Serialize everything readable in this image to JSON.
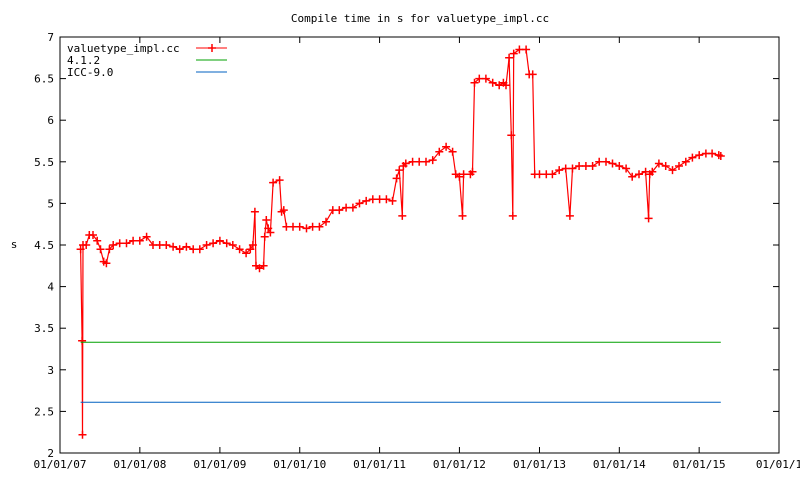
{
  "chart_data": {
    "type": "line",
    "title": "Compile time in s for valuetype_impl.cc",
    "xlabel": "",
    "ylabel": "s",
    "x_type": "date",
    "xlim": [
      "2007-01-01",
      "2016-01-01"
    ],
    "ylim": [
      2,
      7
    ],
    "x_ticks": [
      "01/01/07",
      "01/01/08",
      "01/01/09",
      "01/01/10",
      "01/01/11",
      "01/01/12",
      "01/01/13",
      "01/01/14",
      "01/01/15",
      "01/01/1"
    ],
    "y_ticks": [
      "2",
      "2.5",
      "3",
      "3.5",
      "4",
      "4.5",
      "5",
      "5.5",
      "6",
      "6.5",
      "7"
    ],
    "legend_position": "top-left",
    "series": [
      {
        "name": "valuetype_impl.cc",
        "color": "#ff0000",
        "style": "line+points",
        "marker": "cross",
        "points": [
          [
            "2007-04-05",
            4.45
          ],
          [
            "2007-04-12",
            3.35
          ],
          [
            "2007-04-14",
            2.22
          ],
          [
            "2007-04-16",
            4.5
          ],
          [
            "2007-05-01",
            4.5
          ],
          [
            "2007-05-15",
            4.62
          ],
          [
            "2007-06-01",
            4.62
          ],
          [
            "2007-06-20",
            4.55
          ],
          [
            "2007-07-05",
            4.45
          ],
          [
            "2007-07-20",
            4.3
          ],
          [
            "2007-08-01",
            4.28
          ],
          [
            "2007-08-15",
            4.45
          ],
          [
            "2007-09-01",
            4.5
          ],
          [
            "2007-10-01",
            4.52
          ],
          [
            "2007-11-01",
            4.52
          ],
          [
            "2007-12-01",
            4.55
          ],
          [
            "2008-01-01",
            4.55
          ],
          [
            "2008-02-01",
            4.6
          ],
          [
            "2008-03-01",
            4.5
          ],
          [
            "2008-04-01",
            4.5
          ],
          [
            "2008-05-01",
            4.5
          ],
          [
            "2008-06-01",
            4.48
          ],
          [
            "2008-07-01",
            4.45
          ],
          [
            "2008-08-01",
            4.48
          ],
          [
            "2008-09-01",
            4.45
          ],
          [
            "2008-10-01",
            4.45
          ],
          [
            "2008-11-01",
            4.5
          ],
          [
            "2008-12-01",
            4.52
          ],
          [
            "2009-01-01",
            4.55
          ],
          [
            "2009-02-01",
            4.52
          ],
          [
            "2009-03-01",
            4.5
          ],
          [
            "2009-04-01",
            4.45
          ],
          [
            "2009-05-01",
            4.4
          ],
          [
            "2009-05-20",
            4.45
          ],
          [
            "2009-06-01",
            4.5
          ],
          [
            "2009-06-10",
            4.9
          ],
          [
            "2009-06-15",
            4.25
          ],
          [
            "2009-07-01",
            4.22
          ],
          [
            "2009-07-20",
            4.25
          ],
          [
            "2009-07-25",
            4.6
          ],
          [
            "2009-08-01",
            4.8
          ],
          [
            "2009-08-10",
            4.7
          ],
          [
            "2009-08-20",
            4.65
          ],
          [
            "2009-09-01",
            5.25
          ],
          [
            "2009-10-01",
            5.28
          ],
          [
            "2009-10-10",
            4.9
          ],
          [
            "2009-10-20",
            4.92
          ],
          [
            "2009-11-01",
            4.72
          ],
          [
            "2009-12-01",
            4.72
          ],
          [
            "2010-01-01",
            4.72
          ],
          [
            "2010-02-01",
            4.7
          ],
          [
            "2010-03-01",
            4.72
          ],
          [
            "2010-04-01",
            4.72
          ],
          [
            "2010-05-01",
            4.78
          ],
          [
            "2010-06-01",
            4.92
          ],
          [
            "2010-07-01",
            4.92
          ],
          [
            "2010-08-01",
            4.95
          ],
          [
            "2010-09-01",
            4.95
          ],
          [
            "2010-10-01",
            5.0
          ],
          [
            "2010-11-01",
            5.03
          ],
          [
            "2010-12-01",
            5.05
          ],
          [
            "2011-01-01",
            5.05
          ],
          [
            "2011-02-01",
            5.05
          ],
          [
            "2011-03-01",
            5.03
          ],
          [
            "2011-03-20",
            5.3
          ],
          [
            "2011-04-01",
            5.4
          ],
          [
            "2011-04-15",
            4.85
          ],
          [
            "2011-04-20",
            5.45
          ],
          [
            "2011-05-01",
            5.48
          ],
          [
            "2011-06-01",
            5.5
          ],
          [
            "2011-07-01",
            5.5
          ],
          [
            "2011-08-01",
            5.5
          ],
          [
            "2011-09-01",
            5.52
          ],
          [
            "2011-10-01",
            5.62
          ],
          [
            "2011-11-01",
            5.68
          ],
          [
            "2011-12-01",
            5.62
          ],
          [
            "2011-12-15",
            5.35
          ],
          [
            "2012-01-01",
            5.32
          ],
          [
            "2012-01-15",
            4.85
          ],
          [
            "2012-01-20",
            5.35
          ],
          [
            "2012-02-20",
            5.35
          ],
          [
            "2012-03-01",
            5.38
          ],
          [
            "2012-03-10",
            6.45
          ],
          [
            "2012-04-01",
            6.5
          ],
          [
            "2012-05-01",
            6.5
          ],
          [
            "2012-06-01",
            6.45
          ],
          [
            "2012-07-01",
            6.42
          ],
          [
            "2012-07-20",
            6.45
          ],
          [
            "2012-08-01",
            6.42
          ],
          [
            "2012-08-15",
            6.75
          ],
          [
            "2012-08-25",
            5.82
          ],
          [
            "2012-09-01",
            4.85
          ],
          [
            "2012-09-05",
            6.8
          ],
          [
            "2012-10-01",
            6.85
          ],
          [
            "2012-11-01",
            6.85
          ],
          [
            "2012-11-15",
            6.55
          ],
          [
            "2012-12-01",
            6.55
          ],
          [
            "2012-12-10",
            5.35
          ],
          [
            "2013-01-01",
            5.35
          ],
          [
            "2013-02-01",
            5.35
          ],
          [
            "2013-03-01",
            5.35
          ],
          [
            "2013-04-01",
            5.4
          ],
          [
            "2013-05-01",
            5.42
          ],
          [
            "2013-05-20",
            4.85
          ],
          [
            "2013-06-01",
            5.42
          ],
          [
            "2013-07-01",
            5.45
          ],
          [
            "2013-08-01",
            5.45
          ],
          [
            "2013-09-01",
            5.45
          ],
          [
            "2013-10-01",
            5.5
          ],
          [
            "2013-11-01",
            5.5
          ],
          [
            "2013-12-01",
            5.48
          ],
          [
            "2014-01-01",
            5.45
          ],
          [
            "2014-02-01",
            5.42
          ],
          [
            "2014-03-01",
            5.32
          ],
          [
            "2014-04-01",
            5.35
          ],
          [
            "2014-05-01",
            5.38
          ],
          [
            "2014-05-15",
            4.82
          ],
          [
            "2014-05-20",
            5.35
          ],
          [
            "2014-06-01",
            5.38
          ],
          [
            "2014-07-01",
            5.48
          ],
          [
            "2014-08-01",
            5.45
          ],
          [
            "2014-09-01",
            5.4
          ],
          [
            "2014-10-01",
            5.45
          ],
          [
            "2014-11-01",
            5.5
          ],
          [
            "2014-12-01",
            5.55
          ],
          [
            "2015-01-01",
            5.58
          ],
          [
            "2015-02-01",
            5.6
          ],
          [
            "2015-03-01",
            5.6
          ],
          [
            "2015-04-01",
            5.58
          ],
          [
            "2015-04-10",
            5.57
          ]
        ]
      },
      {
        "name": "4.1.2",
        "color": "#00a000",
        "style": "line",
        "points": [
          [
            "2007-04-05",
            3.33
          ],
          [
            "2015-04-10",
            3.33
          ]
        ]
      },
      {
        "name": "ICC-9.0",
        "color": "#0060c0",
        "style": "line",
        "points": [
          [
            "2007-04-05",
            2.61
          ],
          [
            "2015-04-10",
            2.61
          ]
        ]
      }
    ]
  }
}
